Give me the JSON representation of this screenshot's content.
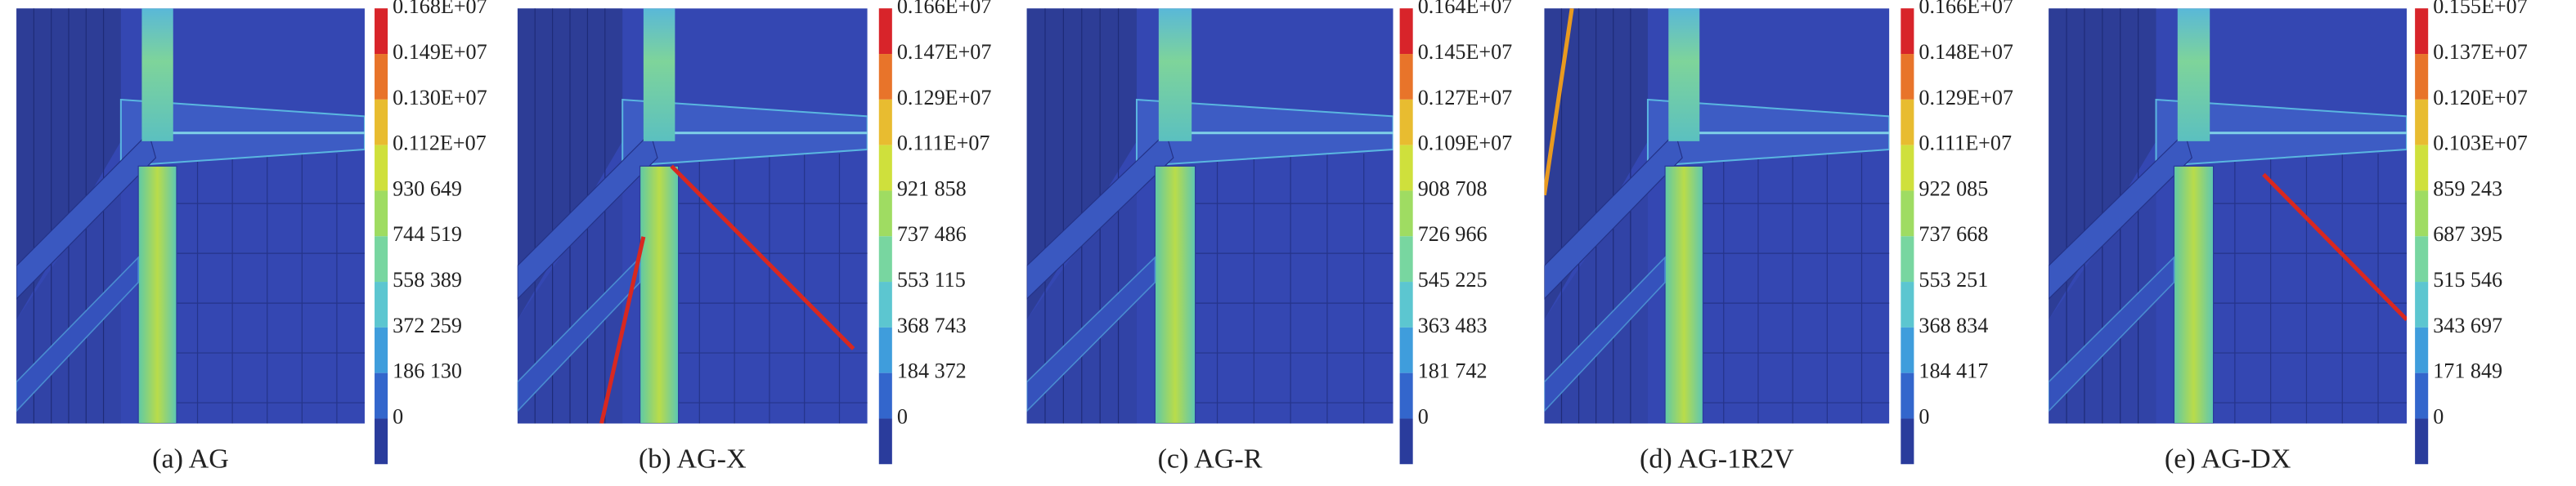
{
  "panels": [
    {
      "caption": "(a) AG",
      "colorbar": [
        "0.168E+07",
        "0.149E+07",
        "0.130E+07",
        "0.112E+07",
        "930 649",
        "744 519",
        "558 389",
        "372 259",
        "186 130",
        "0"
      ]
    },
    {
      "caption": "(b) AG-X",
      "colorbar": [
        "0.166E+07",
        "0.147E+07",
        "0.129E+07",
        "0.111E+07",
        "921 858",
        "737 486",
        "553 115",
        "368 743",
        "184 372",
        "0"
      ]
    },
    {
      "caption": "(c) AG-R",
      "colorbar": [
        "0.164E+07",
        "0.145E+07",
        "0.127E+07",
        "0.109E+07",
        "908 708",
        "726 966",
        "545 225",
        "363 483",
        "181 742",
        "0"
      ]
    },
    {
      "caption": "(d) AG-1R2V",
      "colorbar": [
        "0.166E+07",
        "0.148E+07",
        "0.129E+07",
        "0.111E+07",
        "922 085",
        "737 668",
        "553 251",
        "368 834",
        "184 417",
        "0"
      ]
    },
    {
      "caption": "(e) AG-DX",
      "colorbar": [
        "0.155E+07",
        "0.137E+07",
        "0.120E+07",
        "0.103E+07",
        "859 243",
        "687 395",
        "515 546",
        "343 697",
        "171 849",
        "0"
      ]
    }
  ]
}
